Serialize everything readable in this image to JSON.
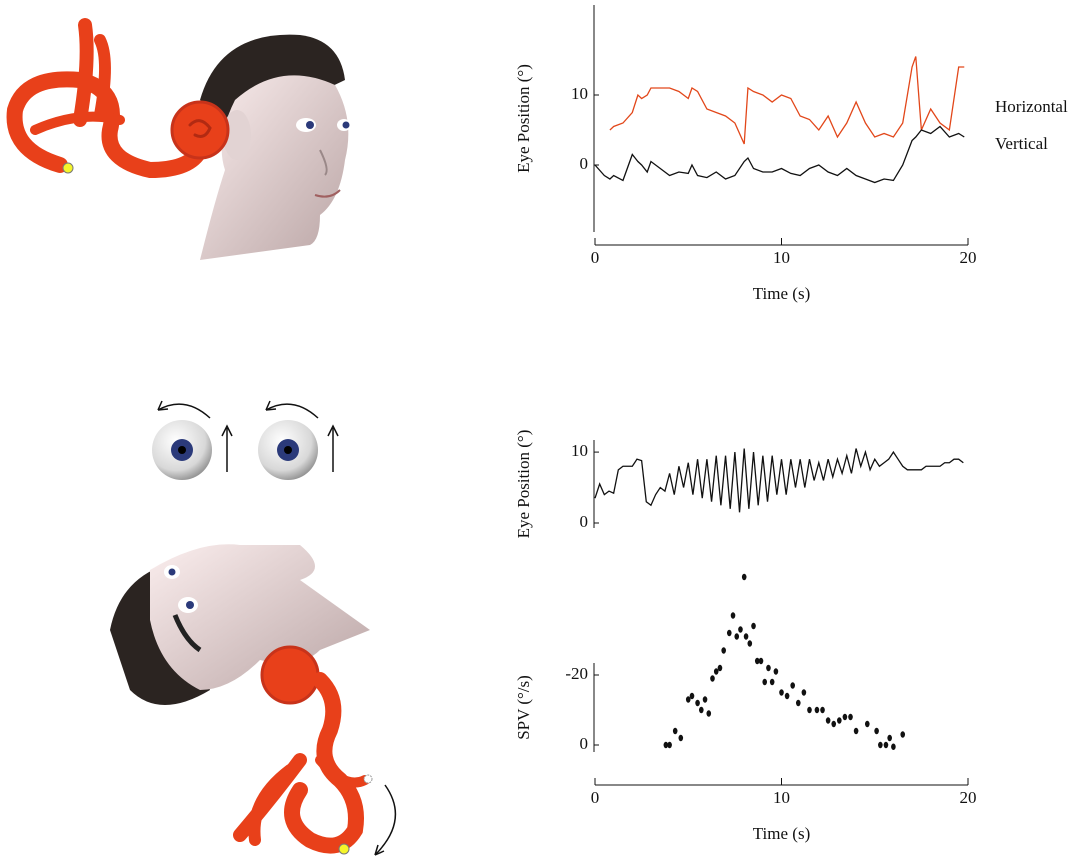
{
  "chart_data": [
    {
      "type": "line",
      "ylabel": "Eye Position (°)",
      "xlabel": "Time (s)",
      "xlim": [
        0,
        20
      ],
      "xticks": [
        0,
        10,
        20
      ],
      "ylim": [
        -9,
        22
      ],
      "yticks": [
        0,
        10
      ],
      "x": [
        0,
        0.5,
        0.8,
        1,
        1.5,
        2,
        2.3,
        2.5,
        2.8,
        3,
        3.5,
        4,
        4.5,
        5,
        5.2,
        5.5,
        6,
        6.5,
        7,
        7.5,
        8,
        8.2,
        8.5,
        9,
        9.5,
        10,
        10.5,
        11,
        11.5,
        12,
        12.5,
        13,
        13.5,
        14,
        14.5,
        15,
        15.5,
        16,
        16.5,
        17,
        17.2,
        17.5,
        18,
        18.5,
        19,
        19.5,
        19.8
      ],
      "series": [
        {
          "name": "Horizontal",
          "color": "#e2471a",
          "values": [
            null,
            null,
            5,
            5.5,
            6,
            7.5,
            10,
            9.5,
            10,
            11,
            11,
            11,
            10.5,
            9.5,
            11,
            10.5,
            8,
            7.5,
            7,
            6,
            3,
            11,
            10.5,
            10,
            9,
            10,
            9.5,
            7,
            6.5,
            5,
            7,
            4,
            6,
            9,
            6,
            4,
            4.5,
            4,
            6,
            14,
            15.5,
            5,
            8,
            6,
            5,
            14,
            14
          ]
        },
        {
          "name": "Vertical",
          "color": "#111111",
          "values": [
            0,
            -1.5,
            -2,
            -1.5,
            -2.2,
            1.5,
            0.5,
            0,
            -1,
            0.5,
            -0.5,
            -1.5,
            -1,
            -1.2,
            0,
            -1.5,
            -1.8,
            -1,
            -2,
            -1.5,
            0.5,
            1,
            -0.5,
            -1,
            -1,
            -0.5,
            -1.2,
            -1.5,
            -0.5,
            0,
            -1,
            -1.5,
            -0.5,
            -1.5,
            -2,
            -2.5,
            -2,
            -2.2,
            0,
            3.5,
            4,
            5,
            4.5,
            5.5,
            4,
            4.5,
            4
          ]
        }
      ]
    },
    {
      "type": "line",
      "ylabel": "Eye Position (°)",
      "xlim": [
        0,
        20
      ],
      "ylim": [
        0,
        11
      ],
      "yticks": [
        0,
        10
      ],
      "x": [
        0,
        0.25,
        0.5,
        0.75,
        1,
        1.25,
        1.5,
        1.75,
        2,
        2.25,
        2.5,
        2.75,
        3,
        3.25,
        3.5,
        3.75,
        4,
        4.25,
        4.5,
        4.75,
        5,
        5.25,
        5.5,
        5.75,
        6,
        6.25,
        6.5,
        6.75,
        7,
        7.25,
        7.5,
        7.75,
        8,
        8.25,
        8.5,
        8.75,
        9,
        9.25,
        9.5,
        9.75,
        10,
        10.25,
        10.5,
        10.75,
        11,
        11.25,
        11.5,
        11.75,
        12,
        12.25,
        12.5,
        12.75,
        13,
        13.25,
        13.5,
        13.75,
        14,
        14.25,
        14.5,
        14.75,
        15,
        15.25,
        15.5,
        15.75,
        16,
        16.25,
        16.5,
        16.75,
        17,
        17.25,
        17.5,
        17.75,
        18,
        18.25,
        18.5,
        18.75,
        19,
        19.25,
        19.5,
        19.75
      ],
      "series": [
        {
          "color": "#111111",
          "values": [
            3.5,
            5.5,
            4,
            4.5,
            4.2,
            7.5,
            8,
            8,
            8,
            9,
            8.8,
            3,
            2.5,
            4,
            5,
            4.5,
            7,
            4,
            8,
            5,
            8.5,
            4,
            9,
            3.5,
            9,
            3,
            9.5,
            2.5,
            9.5,
            2,
            10,
            1.5,
            10.5,
            2,
            10,
            2.5,
            9.5,
            3,
            9.5,
            4,
            9,
            4,
            9,
            5,
            9,
            5,
            9,
            6,
            8.5,
            6,
            9,
            6.5,
            9,
            7,
            9.5,
            7,
            10.5,
            8,
            10,
            7.5,
            9,
            8,
            8.5,
            9,
            10,
            9,
            8,
            7.5,
            7.5,
            7.5,
            7.5,
            8,
            8,
            8,
            8,
            8.5,
            8.5,
            9,
            9,
            8.5
          ]
        }
      ]
    },
    {
      "type": "scatter",
      "ylabel": "SPV (°/s)",
      "xlabel": "Time (s)",
      "xlim": [
        0,
        20
      ],
      "xticks": [
        0,
        10,
        20
      ],
      "ylim": [
        3,
        -50
      ],
      "yticks": [
        0,
        -20
      ],
      "x": [
        3.8,
        4.0,
        4.3,
        4.6,
        5.0,
        5.2,
        5.5,
        5.7,
        5.9,
        6.1,
        6.3,
        6.5,
        6.7,
        6.9,
        7.2,
        7.4,
        7.6,
        7.8,
        8.0,
        8.1,
        8.3,
        8.5,
        8.7,
        8.9,
        9.1,
        9.3,
        9.5,
        9.7,
        10.0,
        10.3,
        10.6,
        10.9,
        11.2,
        11.5,
        11.9,
        12.2,
        12.5,
        12.8,
        13.1,
        13.4,
        13.7,
        14.0,
        14.6,
        15.1,
        15.3,
        15.6,
        15.8,
        16.0,
        16.5
      ],
      "series": [
        {
          "color": "#111111",
          "values": [
            0,
            0,
            -4,
            -2,
            -13,
            -14,
            -12,
            -10,
            -13,
            -9,
            -19,
            -21,
            -22,
            -27,
            -32,
            -37,
            -31,
            -33,
            -48,
            -31,
            -29,
            -34,
            -24,
            -24,
            -18,
            -22,
            -18,
            -21,
            -15,
            -14,
            -17,
            -12,
            -15,
            -10,
            -10,
            -10,
            -7,
            -6,
            -7,
            -8,
            -8,
            -4,
            -6,
            -4,
            0,
            0,
            -2,
            0.5,
            -3
          ]
        }
      ]
    }
  ]
}
